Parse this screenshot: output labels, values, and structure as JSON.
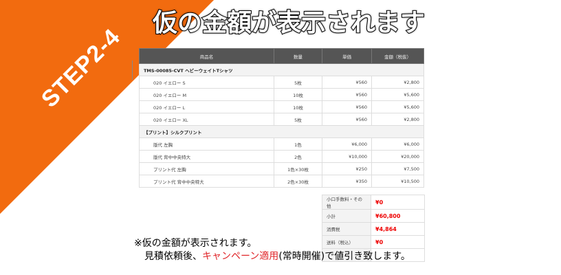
{
  "banner": "STEP2-4",
  "title": "仮の金額が表示されます",
  "headers": [
    "商品名",
    "数量",
    "単価",
    "金額（税抜）"
  ],
  "groups": [
    {
      "name": "TMS-00085-CVT ヘビーウェイトTシャツ",
      "rows": [
        {
          "name": "020 イエロー S",
          "qty": "5枚",
          "price": "¥560",
          "total": "¥2,800"
        },
        {
          "name": "020 イエロー M",
          "qty": "10枚",
          "price": "¥560",
          "total": "¥5,600"
        },
        {
          "name": "020 イエロー L",
          "qty": "10枚",
          "price": "¥560",
          "total": "¥5,600"
        },
        {
          "name": "020 イエロー XL",
          "qty": "5枚",
          "price": "¥560",
          "total": "¥2,800"
        }
      ]
    },
    {
      "name": "【プリント】シルクプリント",
      "rows": [
        {
          "name": "版代 左胸",
          "qty": "1色",
          "price": "¥6,000",
          "total": "¥6,000"
        },
        {
          "name": "版代 背中中央特大",
          "qty": "2色",
          "price": "¥10,000",
          "total": "¥20,000"
        },
        {
          "name": "プリント代 左胸",
          "qty": "1色×30枚",
          "price": "¥250",
          "total": "¥7,500"
        },
        {
          "name": "プリント代 背中中央特大",
          "qty": "2色×30枚",
          "price": "¥350",
          "total": "¥10,500"
        }
      ]
    }
  ],
  "summary": [
    {
      "label": "小口手数料・その他",
      "value": "¥0"
    },
    {
      "label": "小計",
      "value": "¥60,800"
    },
    {
      "label": "消費税",
      "value": "¥4,864"
    },
    {
      "label": "送料（税込）",
      "value": "¥0"
    }
  ],
  "note": {
    "line1": "※仮の金額が表示されます。",
    "line2_pre": "見積依頼後、",
    "line2_hl": "キャンペーン適用",
    "line2_post": "(常時開催)で値引き致します。"
  },
  "colors": {
    "banner": "#f26b0f",
    "header": "#555555",
    "highlight": "#e0262a"
  }
}
